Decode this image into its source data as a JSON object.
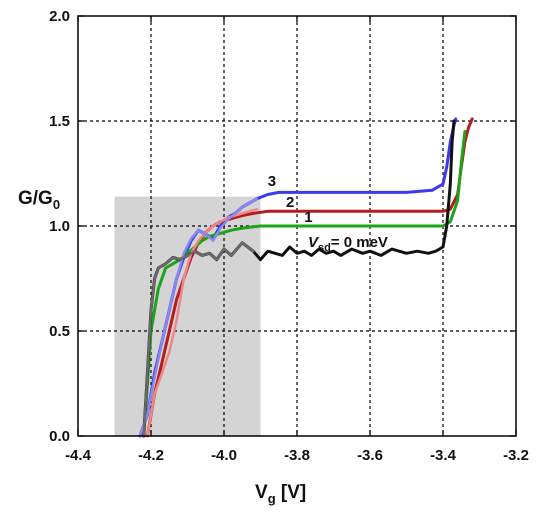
{
  "chart_data": {
    "type": "line",
    "xlabel_main": "V",
    "xlabel_sub": "g",
    "xlabel_unit": " [V]",
    "ylabel_main": "G/G",
    "ylabel_sub": "0",
    "xlim": [
      -4.4,
      -3.2
    ],
    "ylim": [
      0.0,
      2.0
    ],
    "xticks": [
      -4.4,
      -4.2,
      -4.0,
      -3.8,
      -3.6,
      -3.4,
      -3.2
    ],
    "xtick_labels": [
      "-4.4",
      "-4.2",
      "-4.0",
      "-3.8",
      "-3.6",
      "-3.4",
      "-3.2"
    ],
    "yticks": [
      0.0,
      0.5,
      1.0,
      1.5,
      2.0
    ],
    "ytick_labels": [
      "0.0",
      "0.5",
      "1.0",
      "1.5",
      "2.0"
    ],
    "grid": true,
    "shaded_region": {
      "x": [
        -4.3,
        -3.9
      ],
      "y": [
        0.0,
        1.14
      ],
      "color": "#d4d4d4"
    },
    "series": [
      {
        "label": "3",
        "color": "#3a3aee",
        "x": [
          -4.23,
          -4.21,
          -4.19,
          -4.17,
          -4.15,
          -4.13,
          -4.11,
          -4.09,
          -4.07,
          -4.05,
          -4.03,
          -4.01,
          -3.99,
          -3.97,
          -3.95,
          -3.93,
          -3.91,
          -3.88,
          -3.85,
          -3.8,
          -3.7,
          -3.6,
          -3.5,
          -3.43,
          -3.4,
          -3.39,
          -3.38,
          -3.37,
          -3.365
        ],
        "y": [
          0.0,
          0.1,
          0.3,
          0.45,
          0.6,
          0.75,
          0.85,
          0.93,
          0.98,
          0.96,
          0.94,
          1.0,
          1.04,
          1.06,
          1.09,
          1.11,
          1.13,
          1.15,
          1.16,
          1.16,
          1.16,
          1.16,
          1.16,
          1.17,
          1.2,
          1.28,
          1.4,
          1.48,
          1.51
        ]
      },
      {
        "label": "2",
        "color": "#b51c1c",
        "x": [
          -4.21,
          -4.19,
          -4.17,
          -4.15,
          -4.13,
          -4.11,
          -4.09,
          -4.07,
          -4.05,
          -4.03,
          -4.01,
          -3.99,
          -3.97,
          -3.95,
          -3.92,
          -3.88,
          -3.85,
          -3.8,
          -3.7,
          -3.6,
          -3.5,
          -3.4,
          -3.38,
          -3.36,
          -3.35,
          -3.34,
          -3.33,
          -3.32
        ],
        "y": [
          0.0,
          0.2,
          0.35,
          0.5,
          0.65,
          0.75,
          0.85,
          0.92,
          0.97,
          1.0,
          1.02,
          1.03,
          1.04,
          1.05,
          1.06,
          1.07,
          1.07,
          1.07,
          1.07,
          1.07,
          1.07,
          1.07,
          1.08,
          1.15,
          1.28,
          1.4,
          1.47,
          1.51
        ]
      },
      {
        "label": "1",
        "color": "#1aa41a",
        "x": [
          -4.22,
          -4.21,
          -4.2,
          -4.19,
          -4.18,
          -4.16,
          -4.14,
          -4.12,
          -4.1,
          -4.08,
          -4.06,
          -4.04,
          -4.02,
          -4.0,
          -3.98,
          -3.95,
          -3.9,
          -3.85,
          -3.8,
          -3.7,
          -3.6,
          -3.5,
          -3.4,
          -3.38,
          -3.36,
          -3.35,
          -3.34
        ],
        "y": [
          0.0,
          0.25,
          0.5,
          0.6,
          0.7,
          0.8,
          0.82,
          0.84,
          0.87,
          0.9,
          0.93,
          0.95,
          0.96,
          0.97,
          0.98,
          0.99,
          1.0,
          1.0,
          1.0,
          1.0,
          1.0,
          1.0,
          1.0,
          1.02,
          1.12,
          1.3,
          1.45
        ]
      },
      {
        "label": "V_sd = 0 meV",
        "color": "#111111",
        "x": [
          -4.22,
          -4.21,
          -4.2,
          -4.19,
          -4.18,
          -4.16,
          -4.14,
          -4.12,
          -4.1,
          -4.08,
          -4.06,
          -4.04,
          -4.02,
          -4.0,
          -3.98,
          -3.95,
          -3.92,
          -3.9,
          -3.88,
          -3.86,
          -3.84,
          -3.82,
          -3.8,
          -3.78,
          -3.76,
          -3.74,
          -3.72,
          -3.7,
          -3.68,
          -3.65,
          -3.62,
          -3.6,
          -3.57,
          -3.54,
          -3.5,
          -3.47,
          -3.44,
          -3.42,
          -3.4,
          -3.39,
          -3.38,
          -3.375,
          -3.37
        ],
        "y": [
          0.0,
          0.3,
          0.6,
          0.75,
          0.8,
          0.82,
          0.85,
          0.84,
          0.86,
          0.88,
          0.86,
          0.87,
          0.84,
          0.89,
          0.86,
          0.92,
          0.88,
          0.84,
          0.88,
          0.87,
          0.86,
          0.9,
          0.87,
          0.88,
          0.86,
          0.89,
          0.87,
          0.88,
          0.86,
          0.89,
          0.87,
          0.88,
          0.86,
          0.89,
          0.87,
          0.88,
          0.87,
          0.88,
          0.9,
          1.0,
          1.2,
          1.4,
          1.5
        ]
      },
      {
        "label": "",
        "color": "#ee8888",
        "x": [
          -4.21,
          -4.19,
          -4.17,
          -4.15,
          -4.13,
          -4.11,
          -4.09,
          -4.07,
          -4.05,
          -4.03,
          -4.01,
          -3.99,
          -3.97,
          -3.95,
          -3.93,
          -3.91
        ],
        "y": [
          0.0,
          0.2,
          0.3,
          0.4,
          0.55,
          0.75,
          0.87,
          0.93,
          0.97,
          1.0,
          1.02,
          1.04,
          1.05,
          1.06,
          1.07,
          1.08
        ]
      },
      {
        "label": "",
        "color": "#8888ee",
        "x": [
          -4.23,
          -4.21,
          -4.19,
          -4.17,
          -4.15,
          -4.13,
          -4.11,
          -4.09,
          -4.07,
          -4.05,
          -4.03,
          -4.01,
          -3.99,
          -3.97,
          -3.95,
          -3.93,
          -3.91
        ],
        "y": [
          0.0,
          0.1,
          0.28,
          0.45,
          0.6,
          0.75,
          0.87,
          0.94,
          0.98,
          0.96,
          0.93,
          0.99,
          1.03,
          1.06,
          1.09,
          1.11,
          1.13
        ]
      },
      {
        "label": "",
        "color": "#6a6a6a",
        "x": [
          -4.22,
          -4.21,
          -4.2,
          -4.19,
          -4.18,
          -4.16,
          -4.14,
          -4.12,
          -4.1,
          -4.08,
          -4.06,
          -4.04,
          -4.02,
          -4.0,
          -3.98,
          -3.95,
          -3.92
        ],
        "y": [
          0.0,
          0.3,
          0.6,
          0.75,
          0.8,
          0.82,
          0.85,
          0.84,
          0.86,
          0.88,
          0.86,
          0.87,
          0.84,
          0.89,
          0.86,
          0.92,
          0.88
        ]
      }
    ],
    "annotations": [
      {
        "text": "3",
        "x": -3.88,
        "y": 1.19
      },
      {
        "text": "2",
        "x": -3.83,
        "y": 1.09
      },
      {
        "text": "1",
        "x": -3.78,
        "y": 1.02
      }
    ],
    "vsd_label": {
      "main": "V",
      "sub": "sd",
      "rest": "= 0 meV",
      "x": -3.77,
      "y": 0.9
    }
  }
}
